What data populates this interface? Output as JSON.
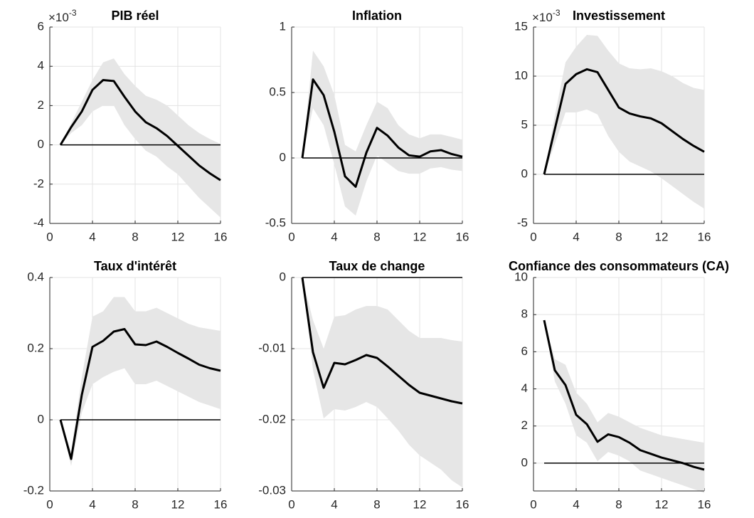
{
  "chart_data": [
    {
      "type": "line",
      "title": "PIB réel",
      "y_exponent_base": "×10",
      "y_exponent": "-3",
      "x": [
        1,
        2,
        3,
        4,
        5,
        6,
        7,
        8,
        9,
        10,
        11,
        12,
        13,
        14,
        15,
        16
      ],
      "series": [
        {
          "color": "#000000",
          "values": [
            0,
            0.9,
            1.7,
            2.8,
            3.3,
            3.25,
            2.45,
            1.7,
            1.15,
            0.85,
            0.45,
            -0.05,
            -0.55,
            -1.05,
            -1.45,
            -1.8
          ]
        }
      ],
      "band": {
        "color": "#e6e6e6",
        "upper": [
          0,
          1.1,
          2.2,
          3.3,
          4.2,
          4.4,
          3.6,
          3.0,
          2.5,
          2.3,
          2.0,
          1.5,
          1.0,
          0.6,
          0.3,
          0.05
        ],
        "lower": [
          0,
          0.6,
          1.0,
          1.7,
          2.0,
          2.0,
          1.0,
          0.3,
          -0.3,
          -0.6,
          -1.1,
          -1.5,
          -2.1,
          -2.7,
          -3.2,
          -3.7
        ]
      },
      "hline": 0,
      "xlim": [
        0,
        16
      ],
      "xticks": [
        0,
        4,
        8,
        12,
        16
      ],
      "ylim": [
        -4,
        6
      ],
      "yticks": [
        -4,
        -2,
        0,
        2,
        4,
        6
      ],
      "grid": true
    },
    {
      "type": "line",
      "title": "Inflation",
      "x": [
        1,
        2,
        3,
        4,
        5,
        6,
        7,
        8,
        9,
        10,
        11,
        12,
        13,
        14,
        15,
        16
      ],
      "series": [
        {
          "color": "#000000",
          "values": [
            0,
            0.6,
            0.48,
            0.2,
            -0.14,
            -0.22,
            0.04,
            0.23,
            0.17,
            0.08,
            0.02,
            0.01,
            0.05,
            0.06,
            0.03,
            0.01
          ]
        }
      ],
      "band": {
        "color": "#e6e6e6",
        "upper": [
          0,
          0.82,
          0.7,
          0.48,
          0.1,
          0.05,
          0.25,
          0.43,
          0.38,
          0.25,
          0.18,
          0.15,
          0.18,
          0.18,
          0.16,
          0.14
        ],
        "lower": [
          0,
          0.38,
          0.25,
          -0.05,
          -0.37,
          -0.44,
          -0.18,
          0.02,
          -0.04,
          -0.1,
          -0.12,
          -0.12,
          -0.08,
          -0.07,
          -0.09,
          -0.1
        ]
      },
      "hline": 0,
      "xlim": [
        0,
        16
      ],
      "xticks": [
        0,
        4,
        8,
        12,
        16
      ],
      "ylim": [
        -0.5,
        1
      ],
      "yticks": [
        -0.5,
        0,
        0.5,
        1
      ],
      "grid": true
    },
    {
      "type": "line",
      "title": "Investissement",
      "y_exponent_base": "×10",
      "y_exponent": "-3",
      "x": [
        1,
        2,
        3,
        4,
        5,
        6,
        7,
        8,
        9,
        10,
        11,
        12,
        13,
        14,
        15,
        16
      ],
      "series": [
        {
          "color": "#000000",
          "values": [
            0,
            4.6,
            9.2,
            10.2,
            10.7,
            10.4,
            8.6,
            6.8,
            6.2,
            5.9,
            5.7,
            5.2,
            4.4,
            3.6,
            2.9,
            2.3
          ]
        }
      ],
      "band": {
        "color": "#e6e6e6",
        "upper": [
          0,
          6,
          11.4,
          13,
          14.2,
          14.1,
          12.6,
          11.3,
          10.8,
          10.7,
          10.8,
          10.5,
          10,
          9.3,
          8.8,
          8.6
        ],
        "lower": [
          0,
          3.1,
          6.3,
          6.3,
          6.6,
          6.1,
          3.9,
          2.3,
          1.3,
          0.8,
          0.3,
          -0.4,
          -1.2,
          -2,
          -2.8,
          -3.5
        ]
      },
      "hline": 0,
      "xlim": [
        0,
        16
      ],
      "xticks": [
        0,
        4,
        8,
        12,
        16
      ],
      "ylim": [
        -5,
        15
      ],
      "yticks": [
        -5,
        0,
        5,
        10,
        15
      ],
      "grid": true
    },
    {
      "type": "line",
      "title": "Taux d'intérêt",
      "x": [
        1,
        2,
        3,
        4,
        5,
        6,
        7,
        8,
        9,
        10,
        11,
        12,
        13,
        14,
        15,
        16
      ],
      "series": [
        {
          "color": "#000000",
          "values": [
            0,
            -0.11,
            0.07,
            0.205,
            0.222,
            0.248,
            0.255,
            0.212,
            0.21,
            0.22,
            0.205,
            0.188,
            0.172,
            0.155,
            0.145,
            0.138
          ]
        }
      ],
      "band": {
        "color": "#e6e6e6",
        "upper": [
          0,
          -0.09,
          0.12,
          0.29,
          0.305,
          0.345,
          0.345,
          0.305,
          0.305,
          0.315,
          0.3,
          0.285,
          0.27,
          0.26,
          0.255,
          0.25
        ],
        "lower": [
          0,
          -0.13,
          0.02,
          0.1,
          0.12,
          0.135,
          0.145,
          0.1,
          0.1,
          0.11,
          0.095,
          0.08,
          0.065,
          0.05,
          0.04,
          0.03
        ]
      },
      "hline": 0,
      "xlim": [
        0,
        16
      ],
      "xticks": [
        0,
        4,
        8,
        12,
        16
      ],
      "ylim": [
        -0.2,
        0.4
      ],
      "yticks": [
        -0.2,
        0,
        0.2,
        0.4
      ],
      "grid": true
    },
    {
      "type": "line",
      "title": "Taux de change",
      "x": [
        1,
        2,
        3,
        4,
        5,
        6,
        7,
        8,
        9,
        10,
        11,
        12,
        13,
        14,
        15,
        16
      ],
      "series": [
        {
          "color": "#000000",
          "values": [
            0,
            -0.0105,
            -0.0155,
            -0.012,
            -0.0122,
            -0.0116,
            -0.0109,
            -0.0113,
            -0.0125,
            -0.0138,
            -0.0151,
            -0.0162,
            -0.0166,
            -0.017,
            -0.0174,
            -0.0177
          ]
        }
      ],
      "band": {
        "color": "#e6e6e6",
        "upper": [
          0,
          -0.006,
          -0.01,
          -0.0055,
          -0.0053,
          -0.0045,
          -0.004,
          -0.004,
          -0.0045,
          -0.006,
          -0.0075,
          -0.0085,
          -0.0085,
          -0.0085,
          -0.0088,
          -0.009
        ],
        "lower": [
          0,
          -0.013,
          -0.0198,
          -0.0185,
          -0.0187,
          -0.0182,
          -0.0175,
          -0.0182,
          -0.0198,
          -0.0215,
          -0.0235,
          -0.025,
          -0.026,
          -0.027,
          -0.0285,
          -0.0295
        ]
      },
      "hline": 0,
      "xlim": [
        0,
        16
      ],
      "xticks": [
        0,
        4,
        8,
        12,
        16
      ],
      "ylim": [
        -0.03,
        0
      ],
      "yticks": [
        -0.03,
        -0.02,
        -0.01,
        0
      ],
      "grid": true
    },
    {
      "type": "line",
      "title": "Confiance des consommateurs (CA)",
      "x": [
        1,
        2,
        3,
        4,
        5,
        6,
        7,
        8,
        9,
        10,
        11,
        12,
        13,
        14,
        15,
        16
      ],
      "series": [
        {
          "color": "#000000",
          "values": [
            7.7,
            5,
            4.2,
            2.6,
            2.1,
            1.15,
            1.55,
            1.4,
            1.1,
            0.7,
            0.5,
            0.3,
            0.15,
            0,
            -0.2,
            -0.35
          ]
        }
      ],
      "band": {
        "color": "#e6e6e6",
        "upper": [
          7.7,
          5.6,
          5.3,
          3.8,
          3.2,
          2.2,
          2.7,
          2.5,
          2.2,
          1.9,
          1.7,
          1.5,
          1.4,
          1.3,
          1.2,
          1.1
        ],
        "lower": [
          7.7,
          4.4,
          3.2,
          1.5,
          1.1,
          0.1,
          0.6,
          0.4,
          0.1,
          -0.4,
          -0.6,
          -0.8,
          -1,
          -1.2,
          -1.4,
          -1.6
        ]
      },
      "hline": 0,
      "xlim": [
        0,
        16
      ],
      "xticks": [
        0,
        4,
        8,
        12,
        16
      ],
      "ylim": [
        -1.5,
        10
      ],
      "yticks": [
        0,
        2,
        4,
        6,
        8,
        10
      ],
      "grid": true
    }
  ]
}
